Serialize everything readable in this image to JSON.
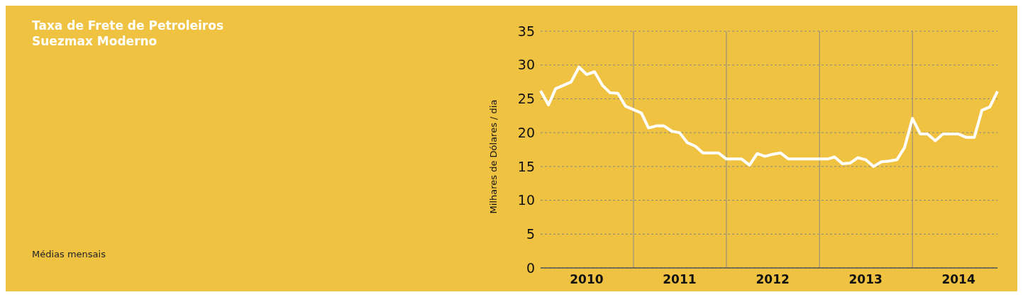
{
  "chart_data": {
    "type": "line",
    "title": "Taxa de Frete de Petroleiros Suezmax Moderno",
    "ylabel": "Milhares de Dólares / dia",
    "annotations": [
      "Médias mensais"
    ],
    "x": [
      "2010-01",
      "2010-02",
      "2010-03",
      "2010-04",
      "2010-05",
      "2010-06",
      "2010-07",
      "2010-08",
      "2010-09",
      "2010-10",
      "2010-11",
      "2010-12",
      "2011-01",
      "2011-02",
      "2011-03",
      "2011-04",
      "2011-05",
      "2011-06",
      "2011-07",
      "2011-08",
      "2011-09",
      "2011-10",
      "2011-11",
      "2011-12",
      "2012-01",
      "2012-02",
      "2012-03",
      "2012-04",
      "2012-05",
      "2012-06",
      "2012-07",
      "2012-08",
      "2012-09",
      "2012-10",
      "2012-11",
      "2012-12",
      "2013-01",
      "2013-02",
      "2013-03",
      "2013-04",
      "2013-05",
      "2013-06",
      "2013-07",
      "2013-08",
      "2013-09",
      "2013-10",
      "2013-11",
      "2013-12",
      "2014-01",
      "2014-02",
      "2014-03",
      "2014-04",
      "2014-05",
      "2014-06",
      "2014-07",
      "2014-08",
      "2014-09",
      "2014-10",
      "2014-11",
      "2014-12"
    ],
    "series": [
      {
        "color": "#ffffff",
        "values": [
          26.2,
          24.1,
          26.5,
          27.0,
          27.5,
          29.7,
          28.6,
          29.0,
          27.0,
          25.9,
          25.8,
          23.9,
          23.4,
          22.9,
          20.7,
          21.0,
          21.0,
          20.2,
          20.0,
          18.5,
          18.0,
          17.0,
          17.0,
          17.0,
          16.1,
          16.1,
          16.1,
          15.2,
          16.9,
          16.5,
          16.8,
          17.0,
          16.1,
          16.1,
          16.1,
          16.1,
          16.1,
          16.1,
          16.4,
          15.4,
          15.5,
          16.3,
          16.0,
          15.0,
          15.7,
          15.8,
          16.0,
          17.8,
          22.1,
          19.8,
          19.8,
          18.8,
          19.8,
          19.8,
          19.8,
          19.3,
          19.3,
          23.3,
          23.8,
          26.1
        ]
      }
    ],
    "xlim": [
      "2010-01",
      "2014-12"
    ],
    "xticks": [
      {
        "value": "2010-07",
        "label": "2010"
      },
      {
        "value": "2011-07",
        "label": "2011"
      },
      {
        "value": "2012-07",
        "label": "2012"
      },
      {
        "value": "2013-07",
        "label": "2013"
      },
      {
        "value": "2014-07",
        "label": "2014"
      }
    ],
    "ylim": [
      0,
      35
    ],
    "yticks": [
      0,
      5,
      10,
      15,
      20,
      25,
      30,
      35
    ],
    "ref_lines": [
      {
        "axis": "x",
        "value": "2011-01",
        "color": "#888888"
      },
      {
        "axis": "x",
        "value": "2012-01",
        "color": "#888888"
      },
      {
        "axis": "x",
        "value": "2013-01",
        "color": "#888888"
      },
      {
        "axis": "x",
        "value": "2014-01",
        "color": "#888888"
      }
    ],
    "grid": "y",
    "line_style": "solid"
  }
}
